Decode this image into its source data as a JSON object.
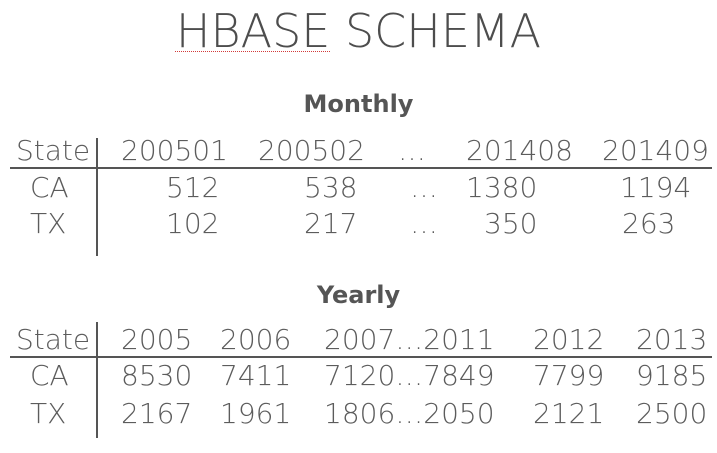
{
  "title_prefix": "HBASE",
  "title_suffix": " SCHEMA",
  "monthly": {
    "heading": "Monthly",
    "header": [
      "State",
      "200501",
      "200502",
      "…",
      "201408",
      "201409"
    ],
    "rows": [
      [
        "CA",
        "512",
        "538",
        "…",
        "1380",
        "1194"
      ],
      [
        "TX",
        "102",
        "217",
        "…",
        "350",
        "263"
      ]
    ]
  },
  "yearly": {
    "heading": "Yearly",
    "header": [
      "State",
      "2005",
      "2006",
      "2007…2011",
      "2012",
      "2013"
    ],
    "rows": [
      [
        "CA",
        "8530",
        "7411",
        "7120…7849",
        "7799",
        "9185"
      ],
      [
        "TX",
        "2167",
        "1961",
        "1806…2050",
        "2121",
        "2500"
      ]
    ]
  }
}
